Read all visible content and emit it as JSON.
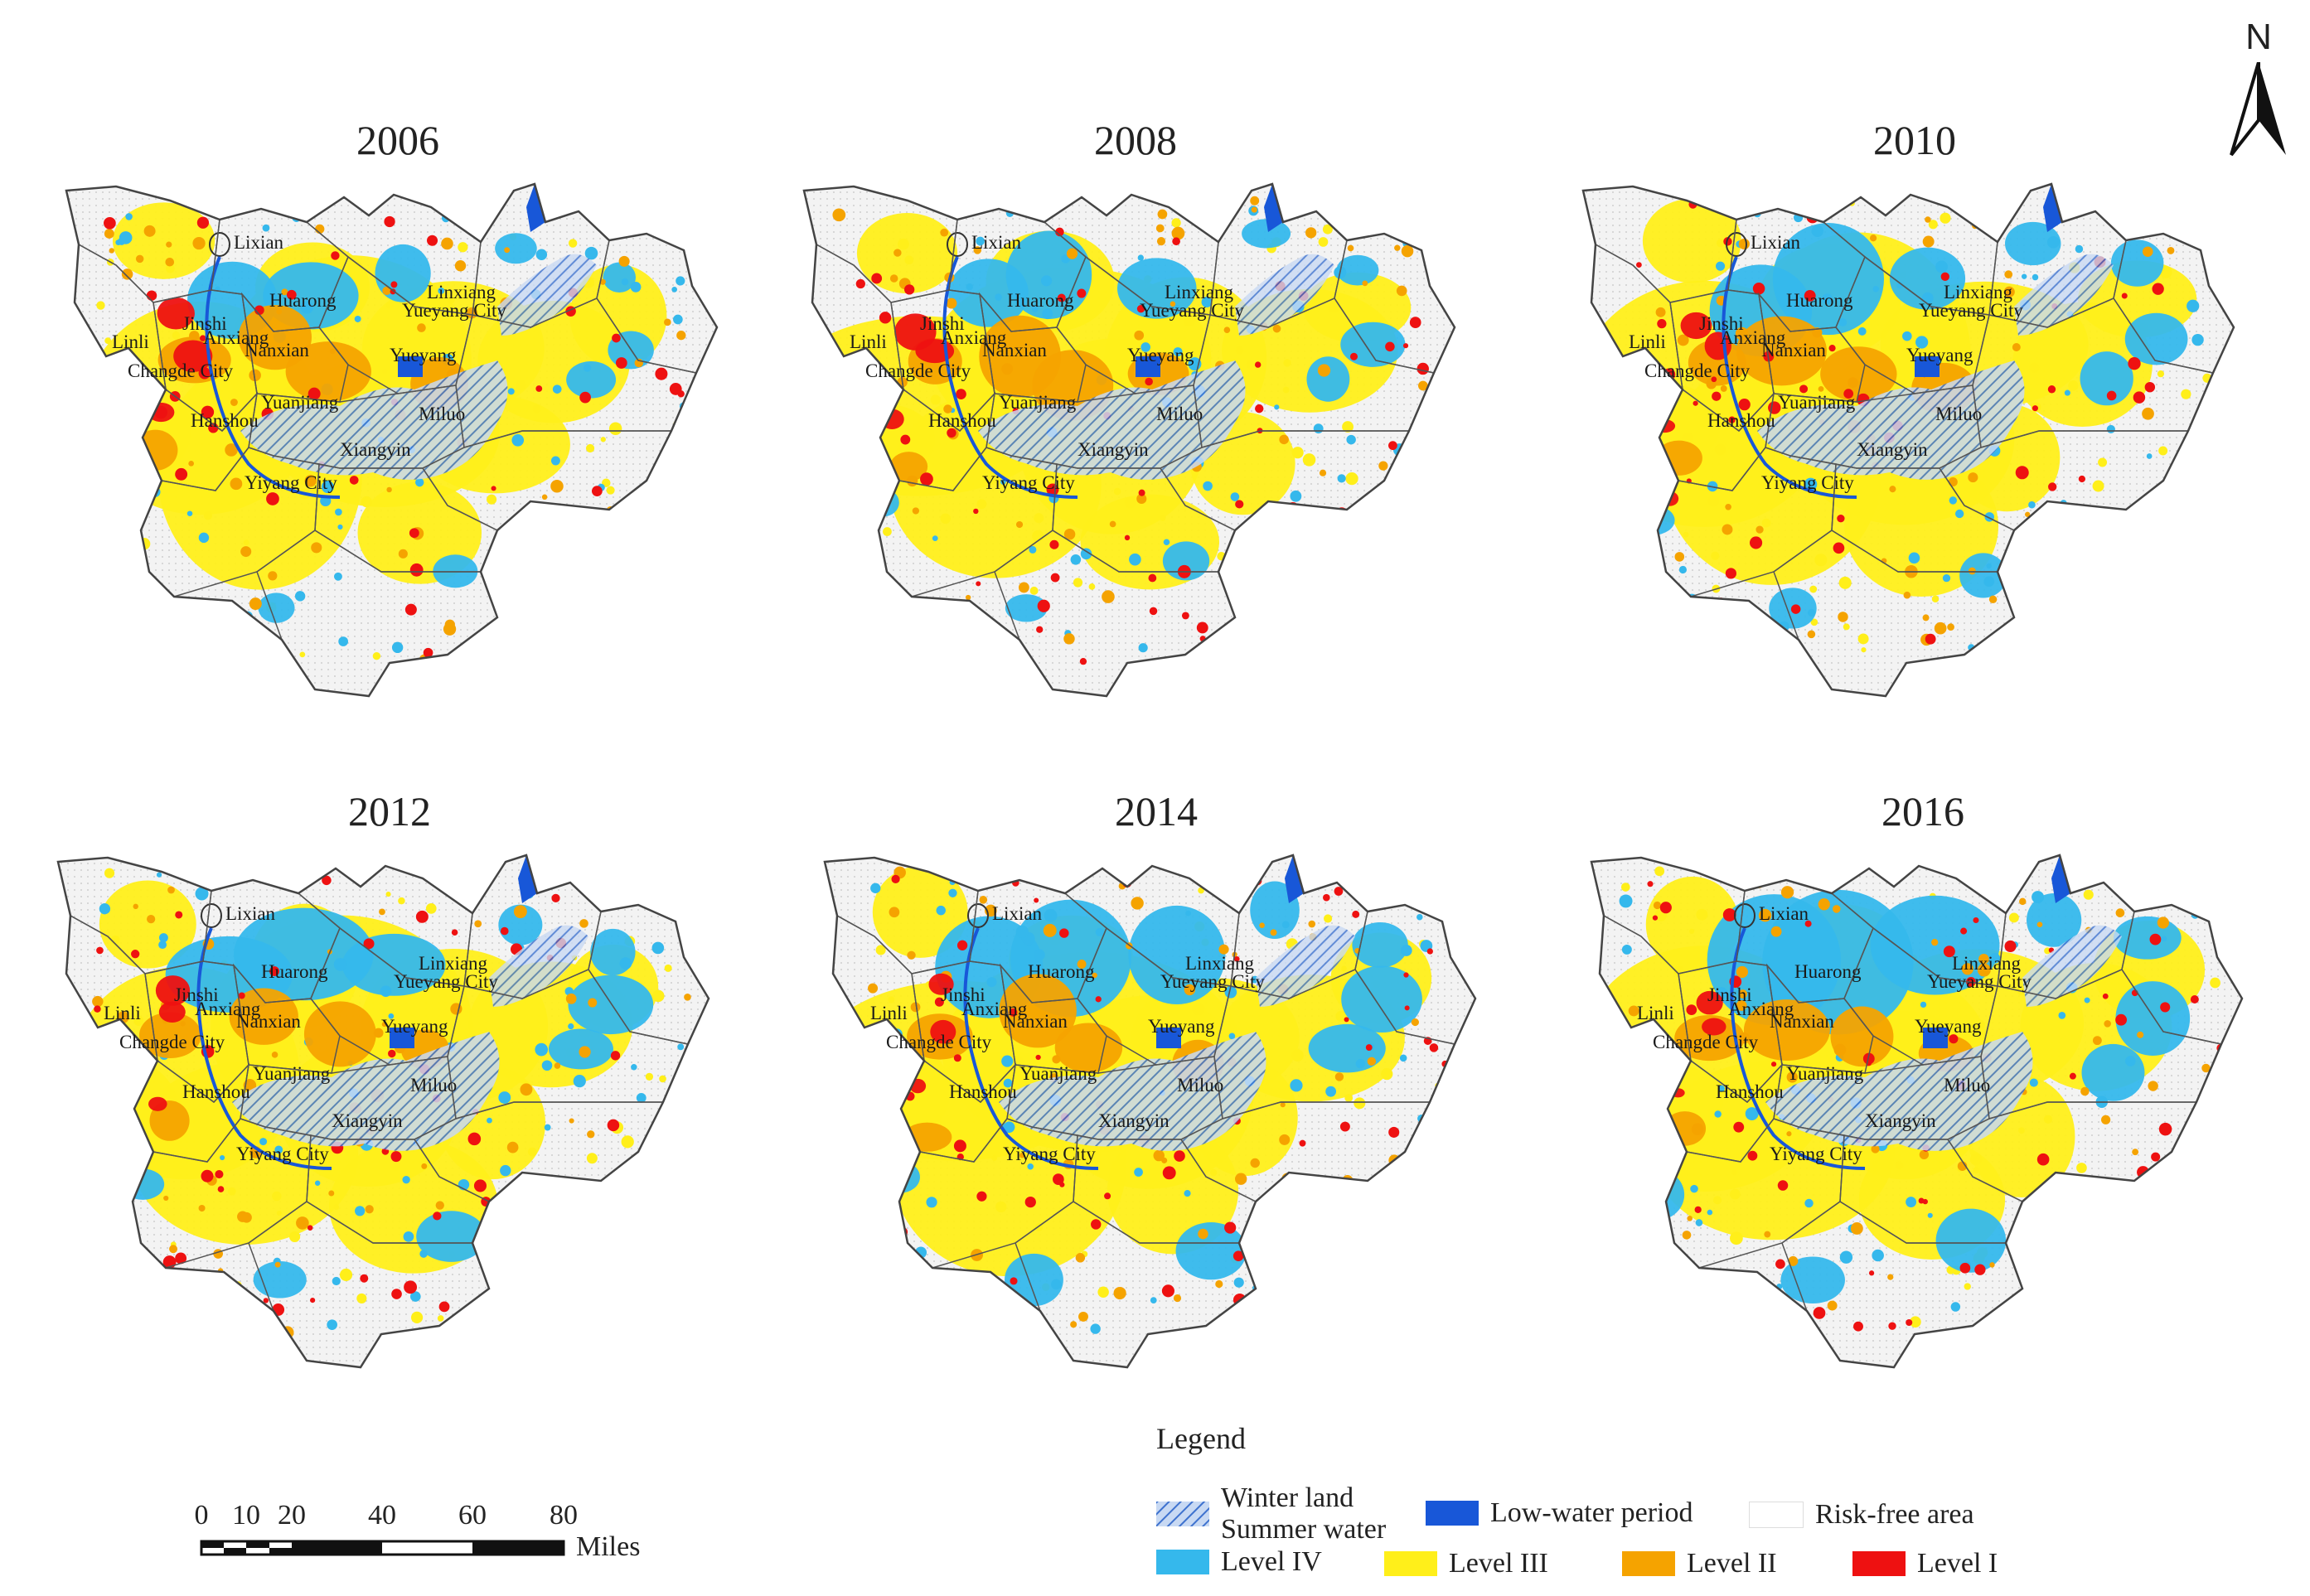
{
  "panels": [
    {
      "id": "p2006",
      "year": "2006"
    },
    {
      "id": "p2008",
      "year": "2008"
    },
    {
      "id": "p2010",
      "year": "2010"
    },
    {
      "id": "p2012",
      "year": "2012"
    },
    {
      "id": "p2014",
      "year": "2014"
    },
    {
      "id": "p2016",
      "year": "2016"
    }
  ],
  "place_names": [
    "Lixian",
    "Linli",
    "Jinshi",
    "Anxiang",
    "Huarong",
    "Yueyang City",
    "Linxiang",
    "Nanxian",
    "Yueyang",
    "Changde City",
    "Yuanjiang",
    "Hanshou",
    "Miluo",
    "Xiangyin",
    "Yiyang City"
  ],
  "north_arrow": {
    "letter": "N"
  },
  "scale_bar": {
    "ticks": [
      "0",
      "10",
      "20",
      "40",
      "60",
      "80"
    ],
    "unit": "Miles"
  },
  "legend": {
    "title": "Legend",
    "items": [
      {
        "key": "winter_land_summer_water",
        "label_line1": "Winter land",
        "label_line2": "Summer water",
        "color": "#4f7fd6"
      },
      {
        "key": "low_water_period",
        "label": "Low-water period",
        "color": "#1857d8"
      },
      {
        "key": "risk_free",
        "label": "Risk-free area",
        "color": "#ffffff"
      },
      {
        "key": "level_iv",
        "label": "Level IV",
        "color": "#35b8ec"
      },
      {
        "key": "level_iii",
        "label": "Level III",
        "color": "#ffef1a"
      },
      {
        "key": "level_ii",
        "label": "Level II",
        "color": "#f5a300"
      },
      {
        "key": "level_i",
        "label": "Level I",
        "color": "#ee1111"
      }
    ]
  },
  "colors": {
    "risk_free_fill": "#f1f1f1",
    "outline": "#555555",
    "hatch": "#3e72cf"
  }
}
